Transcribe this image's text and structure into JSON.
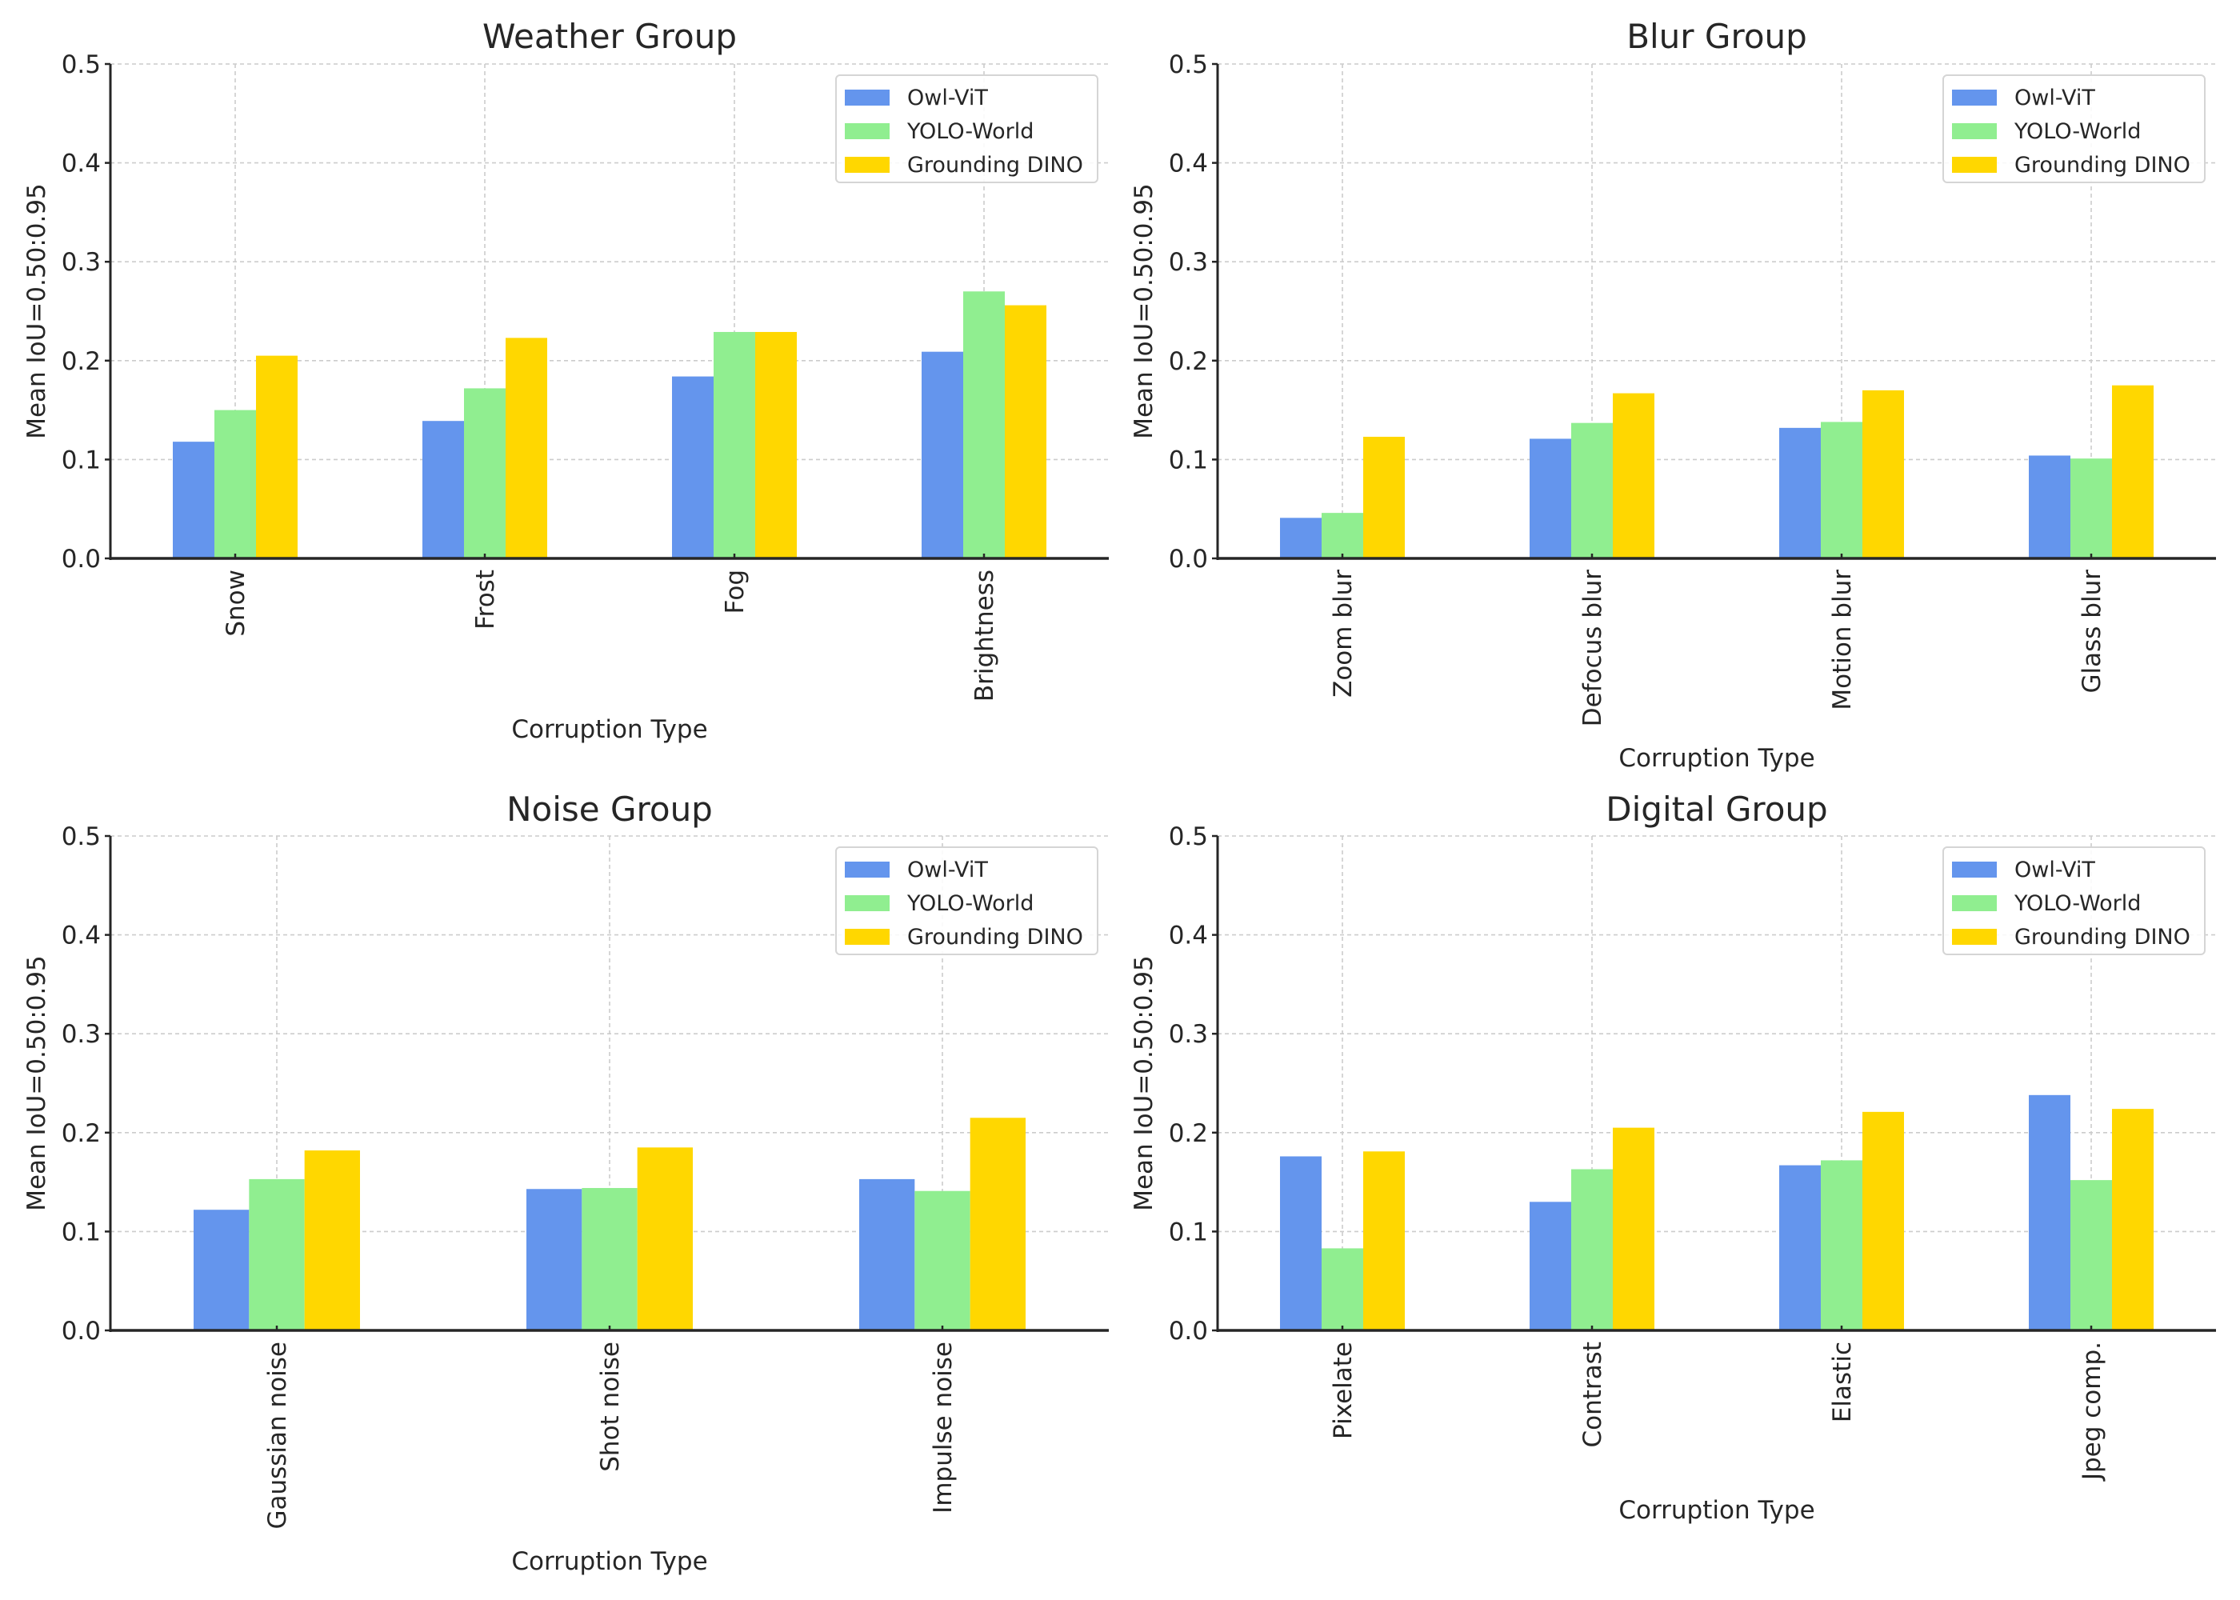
{
  "chart_data": [
    {
      "type": "bar",
      "title": "Weather Group",
      "xlabel": "Corruption Type",
      "ylabel": "Mean IoU=0.50:0.95",
      "ylim": [
        0,
        0.5
      ],
      "yticks": [
        "0.0",
        "0.1",
        "0.2",
        "0.3",
        "0.4",
        "0.5"
      ],
      "grid": true,
      "legend": "top-right",
      "categories": [
        "Snow",
        "Frost",
        "Fog",
        "Brightness"
      ],
      "series": [
        {
          "name": "Owl-ViT",
          "color": "#6495ED",
          "values": [
            0.118,
            0.139,
            0.184,
            0.209
          ]
        },
        {
          "name": "YOLO-World",
          "color": "#90EE90",
          "values": [
            0.15,
            0.172,
            0.229,
            0.27
          ]
        },
        {
          "name": "Grounding DINO",
          "color": "#FFD700",
          "values": [
            0.205,
            0.223,
            0.229,
            0.256
          ]
        }
      ]
    },
    {
      "type": "bar",
      "title": "Blur Group",
      "xlabel": "Corruption Type",
      "ylabel": "Mean IoU=0.50:0.95",
      "ylim": [
        0,
        0.5
      ],
      "yticks": [
        "0.0",
        "0.1",
        "0.2",
        "0.3",
        "0.4",
        "0.5"
      ],
      "grid": true,
      "legend": "top-right",
      "categories": [
        "Zoom blur",
        "Defocus blur",
        "Motion blur",
        "Glass blur"
      ],
      "series": [
        {
          "name": "Owl-ViT",
          "color": "#6495ED",
          "values": [
            0.041,
            0.121,
            0.132,
            0.104
          ]
        },
        {
          "name": "YOLO-World",
          "color": "#90EE90",
          "values": [
            0.046,
            0.137,
            0.138,
            0.101
          ]
        },
        {
          "name": "Grounding DINO",
          "color": "#FFD700",
          "values": [
            0.123,
            0.167,
            0.17,
            0.175
          ]
        }
      ]
    },
    {
      "type": "bar",
      "title": "Noise Group",
      "xlabel": "Corruption Type",
      "ylabel": "Mean IoU=0.50:0.95",
      "ylim": [
        0,
        0.5
      ],
      "yticks": [
        "0.0",
        "0.1",
        "0.2",
        "0.3",
        "0.4",
        "0.5"
      ],
      "grid": true,
      "legend": "top-right",
      "categories": [
        "Gaussian noise",
        "Shot noise",
        "Impulse noise"
      ],
      "series": [
        {
          "name": "Owl-ViT",
          "color": "#6495ED",
          "values": [
            0.122,
            0.143,
            0.153
          ]
        },
        {
          "name": "YOLO-World",
          "color": "#90EE90",
          "values": [
            0.153,
            0.144,
            0.141
          ]
        },
        {
          "name": "Grounding DINO",
          "color": "#FFD700",
          "values": [
            0.182,
            0.185,
            0.215
          ]
        }
      ]
    },
    {
      "type": "bar",
      "title": "Digital Group",
      "xlabel": "Corruption Type",
      "ylabel": "Mean IoU=0.50:0.95",
      "ylim": [
        0,
        0.5
      ],
      "yticks": [
        "0.0",
        "0.1",
        "0.2",
        "0.3",
        "0.4",
        "0.5"
      ],
      "grid": true,
      "legend": "top-right",
      "categories": [
        "Pixelate",
        "Contrast",
        "Elastic",
        "Jpeg comp."
      ],
      "series": [
        {
          "name": "Owl-ViT",
          "color": "#6495ED",
          "values": [
            0.176,
            0.13,
            0.167,
            0.238
          ]
        },
        {
          "name": "YOLO-World",
          "color": "#90EE90",
          "values": [
            0.083,
            0.163,
            0.172,
            0.152
          ]
        },
        {
          "name": "Grounding DINO",
          "color": "#FFD700",
          "values": [
            0.181,
            0.205,
            0.221,
            0.224
          ]
        }
      ]
    }
  ]
}
